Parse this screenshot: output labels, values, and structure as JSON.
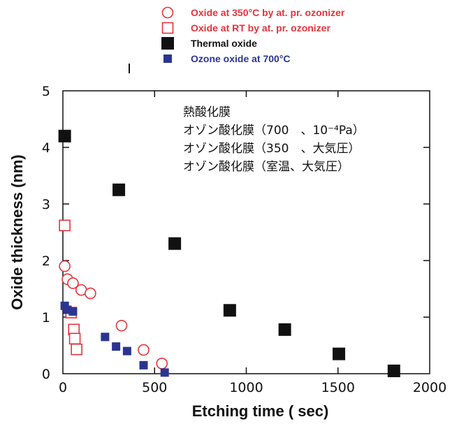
{
  "chart_data": {
    "type": "scatter",
    "xlabel": "Etching time ( sec)",
    "ylabel": "Oxide thickness (nm)",
    "xlim": [
      0,
      2000
    ],
    "ylim": [
      0,
      5
    ],
    "x_ticks": [
      "0",
      "500",
      "1000",
      "1500",
      "2000"
    ],
    "y_ticks": [
      "0",
      "1",
      "2",
      "3",
      "4",
      "5"
    ],
    "grid": false,
    "legend_position": "top",
    "series": [
      {
        "name": "Oxide at 350°C by at. pr. ozonizer",
        "marker": "open-circle",
        "color": "#e8323a",
        "points": [
          [
            10,
            1.9
          ],
          [
            25,
            1.67
          ],
          [
            55,
            1.6
          ],
          [
            100,
            1.48
          ],
          [
            150,
            1.42
          ],
          [
            320,
            0.85
          ],
          [
            440,
            0.42
          ],
          [
            540,
            0.18
          ]
        ]
      },
      {
        "name": "Oxide at RT by at. pr. ozonizer",
        "marker": "open-square",
        "color": "#e8323a",
        "points": [
          [
            10,
            2.62
          ],
          [
            45,
            1.08
          ],
          [
            60,
            0.78
          ],
          [
            65,
            0.62
          ],
          [
            75,
            0.43
          ]
        ]
      },
      {
        "name": "Thermal oxide",
        "marker": "filled-square",
        "color": "#111111",
        "points": [
          [
            10,
            4.2
          ],
          [
            305,
            3.25
          ],
          [
            610,
            2.3
          ],
          [
            910,
            1.12
          ],
          [
            1210,
            0.78
          ],
          [
            1505,
            0.35
          ],
          [
            1805,
            0.05
          ]
        ]
      },
      {
        "name": "Ozone oxide at 700°C",
        "marker": "filled-square-small",
        "color": "#2b3591",
        "points": [
          [
            10,
            1.2
          ],
          [
            25,
            1.13
          ],
          [
            55,
            1.1
          ],
          [
            230,
            0.65
          ],
          [
            290,
            0.48
          ],
          [
            350,
            0.4
          ],
          [
            440,
            0.15
          ],
          [
            555,
            0.02
          ]
        ]
      }
    ],
    "annotation": [
      "熱酸化膜",
      "オゾン酸化膜（700　、10⁻⁴Pa）",
      "オゾン酸化膜（350　、大気圧）",
      "オゾン酸化膜（室温、大気圧）"
    ]
  },
  "legend_colors": {
    "red": "#e8323a",
    "black": "#111111",
    "blue": "#2b3591"
  }
}
